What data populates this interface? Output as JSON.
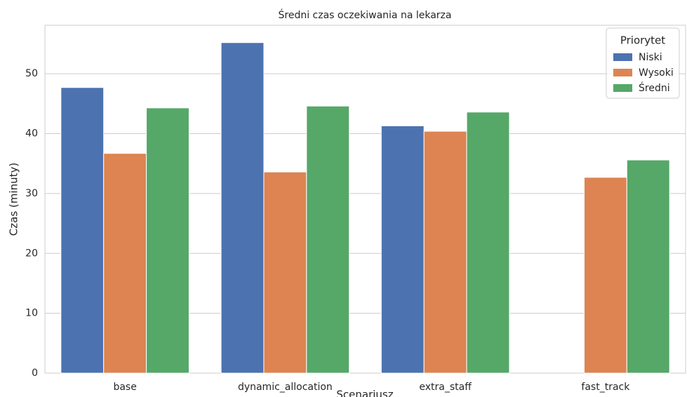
{
  "chart_data": {
    "type": "bar",
    "title": "Średni czas oczekiwania na lekarza",
    "x_label": "Scenariusz",
    "y_label": "Czas (minuty)",
    "categories": [
      "base",
      "dynamic_allocation",
      "extra_staff",
      "fast_track"
    ],
    "series": [
      {
        "name": "Niski",
        "color": "#4c72b0",
        "values": [
          47.7,
          55.2,
          41.3,
          null
        ]
      },
      {
        "name": "Wysoki",
        "color": "#dd8452",
        "values": [
          36.7,
          33.6,
          40.4,
          32.7
        ]
      },
      {
        "name": "Średni",
        "color": "#55a868",
        "values": [
          44.3,
          44.6,
          43.6,
          35.6
        ]
      }
    ],
    "legend_title": "Priorytet",
    "legend": "upper right",
    "ylim": [
      0,
      58.1
    ],
    "yticks": [
      0,
      10,
      20,
      30,
      40,
      50
    ],
    "grid": true
  }
}
